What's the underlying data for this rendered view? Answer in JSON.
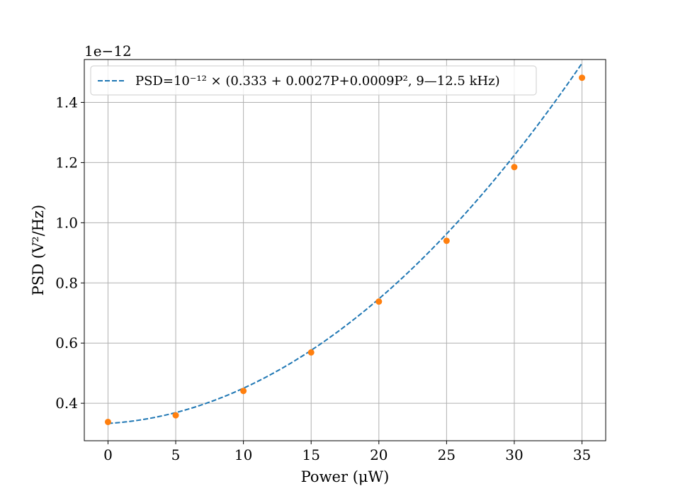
{
  "chart_data": {
    "type": "scatter",
    "title": "",
    "xlabel": "Power (μW)",
    "ylabel": "PSD (V²/Hz)",
    "y_offset_label": "1e−12",
    "xlim": [
      -1.75,
      36.75
    ],
    "ylim": [
      0.2755,
      1.5425
    ],
    "x_ticks": [
      0,
      5,
      10,
      15,
      20,
      25,
      30,
      35
    ],
    "y_ticks": [
      0.4,
      0.6,
      0.8,
      1.0,
      1.2,
      1.4
    ],
    "y_tick_labels": [
      "0.4",
      "0.6",
      "0.8",
      "1.0",
      "1.2",
      "1.4"
    ],
    "grid": true,
    "legend_position": "top-left",
    "series": [
      {
        "name": "PSD=10⁻¹² × (0.333 + 0.0027P+0.0009P², 9—12.5 kHz)",
        "kind": "dashed-line",
        "color": "#1f77b4",
        "fit": {
          "c0": 0.333,
          "c1": 0.0027,
          "c2": 0.0009
        },
        "x_range": [
          0,
          35
        ]
      },
      {
        "name": "",
        "kind": "markers",
        "color": "#ff7f0e",
        "x": [
          0,
          5,
          10,
          15,
          20,
          25,
          30,
          35
        ],
        "y": [
          0.338,
          0.36,
          0.441,
          0.569,
          0.738,
          0.94,
          1.185,
          1.482
        ]
      }
    ]
  }
}
